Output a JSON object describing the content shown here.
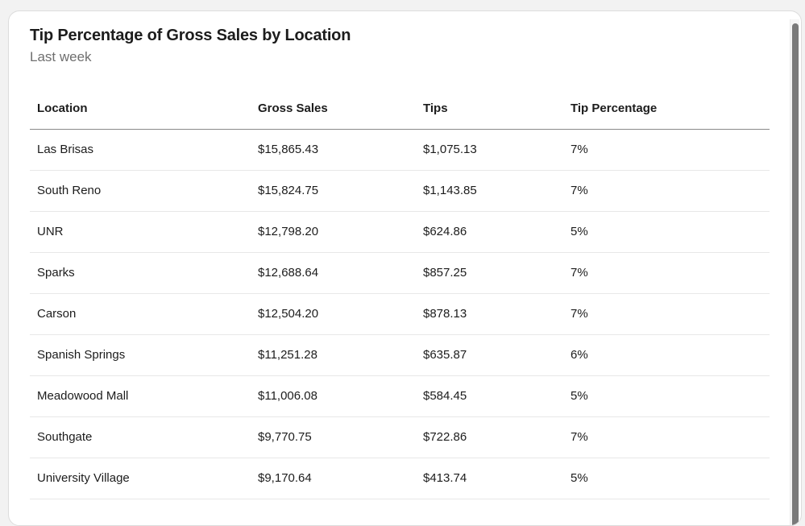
{
  "card": {
    "title": "Tip Percentage of Gross Sales by Location",
    "subtitle": "Last week"
  },
  "table": {
    "columns": [
      "Location",
      "Gross Sales",
      "Tips",
      "Tip Percentage"
    ],
    "rows": [
      [
        "Las Brisas",
        "$15,865.43",
        "$1,075.13",
        "7%"
      ],
      [
        "South Reno",
        "$15,824.75",
        "$1,143.85",
        "7%"
      ],
      [
        "UNR",
        "$12,798.20",
        "$624.86",
        "5%"
      ],
      [
        "Sparks",
        "$12,688.64",
        "$857.25",
        "7%"
      ],
      [
        "Carson",
        "$12,504.20",
        "$878.13",
        "7%"
      ],
      [
        "Spanish Springs",
        "$11,251.28",
        "$635.87",
        "6%"
      ],
      [
        "Meadowood Mall",
        "$11,006.08",
        "$584.45",
        "5%"
      ],
      [
        "Southgate",
        "$9,770.75",
        "$722.86",
        "7%"
      ],
      [
        "University Village",
        "$9,170.64",
        "$413.74",
        "5%"
      ]
    ]
  }
}
